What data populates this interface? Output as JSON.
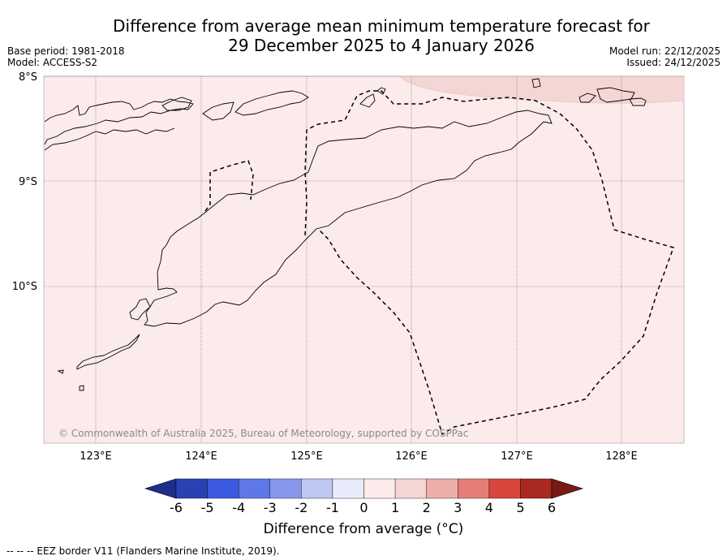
{
  "title": {
    "line1": "Difference from average mean minimum temperature forecast for",
    "line2": "29 December 2025 to 4 January 2026"
  },
  "meta_left": {
    "base_period": "Base period: 1981-2018",
    "model": "Model: ACCESS-S2"
  },
  "meta_right": {
    "model_run": "Model run: 22/12/2025",
    "issued": "Issued: 24/12/2025"
  },
  "map": {
    "lat_labels": [
      "8°S",
      "9°S",
      "10°S"
    ],
    "lon_labels": [
      "123°E",
      "124°E",
      "125°E",
      "126°E",
      "127°E",
      "128°E"
    ],
    "copyright": "© Commonwealth of Australia 2025, Bureau of Meteorology, supported by COSPPac"
  },
  "colorbar": {
    "ticks": [
      "-6",
      "-5",
      "-4",
      "-3",
      "-2",
      "-1",
      "0",
      "1",
      "2",
      "3",
      "4",
      "5",
      "6"
    ],
    "colors": [
      "#1f2d8a",
      "#2a41b4",
      "#3c5ae0",
      "#5e78e8",
      "#8797ec",
      "#bfc7f4",
      "#e8ebfa",
      "#fbebea",
      "#f4d6d4",
      "#edaeaa",
      "#e57e76",
      "#d9453d",
      "#a8291f",
      "#7a1a14"
    ],
    "label": "Difference from average (°C)"
  },
  "footnote": "--  --  -- EEZ border V11 (Flanders Marine Institute, 2019)."
}
